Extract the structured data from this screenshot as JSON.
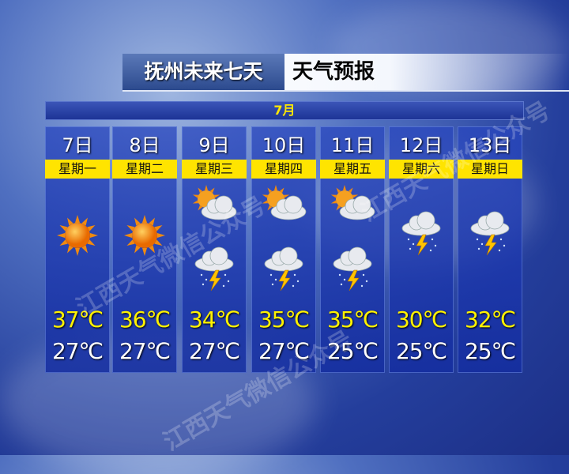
{
  "title": {
    "location_part": "抚州未来七天",
    "forecast_part": "天气预报"
  },
  "month": "7月",
  "watermark": "江西天气微信公众号",
  "colors": {
    "high_temp": "#fff200",
    "low_temp": "#ffffff",
    "weekday_band": "#ffe400",
    "month_text": "#ffe800"
  },
  "days": [
    {
      "date": "7日",
      "weekday": "星期一",
      "icons": [
        "sun-icon"
      ],
      "high": "37℃",
      "low": "27℃"
    },
    {
      "date": "8日",
      "weekday": "星期二",
      "icons": [
        "sun-icon"
      ],
      "high": "36℃",
      "low": "27℃"
    },
    {
      "date": "9日",
      "weekday": "星期三",
      "icons": [
        "partly-cloudy-icon",
        "thunderstorm-icon"
      ],
      "high": "34℃",
      "low": "27℃"
    },
    {
      "date": "10日",
      "weekday": "星期四",
      "icons": [
        "partly-cloudy-icon",
        "thunderstorm-icon"
      ],
      "high": "35℃",
      "low": "27℃"
    },
    {
      "date": "11日",
      "weekday": "星期五",
      "icons": [
        "partly-cloudy-icon",
        "thunderstorm-icon"
      ],
      "high": "35℃",
      "low": "25℃"
    },
    {
      "date": "12日",
      "weekday": "星期六",
      "icons": [
        "thunderstorm-icon"
      ],
      "high": "30℃",
      "low": "25℃"
    },
    {
      "date": "13日",
      "weekday": "星期日",
      "icons": [
        "thunderstorm-icon"
      ],
      "high": "32℃",
      "low": "25℃"
    }
  ]
}
